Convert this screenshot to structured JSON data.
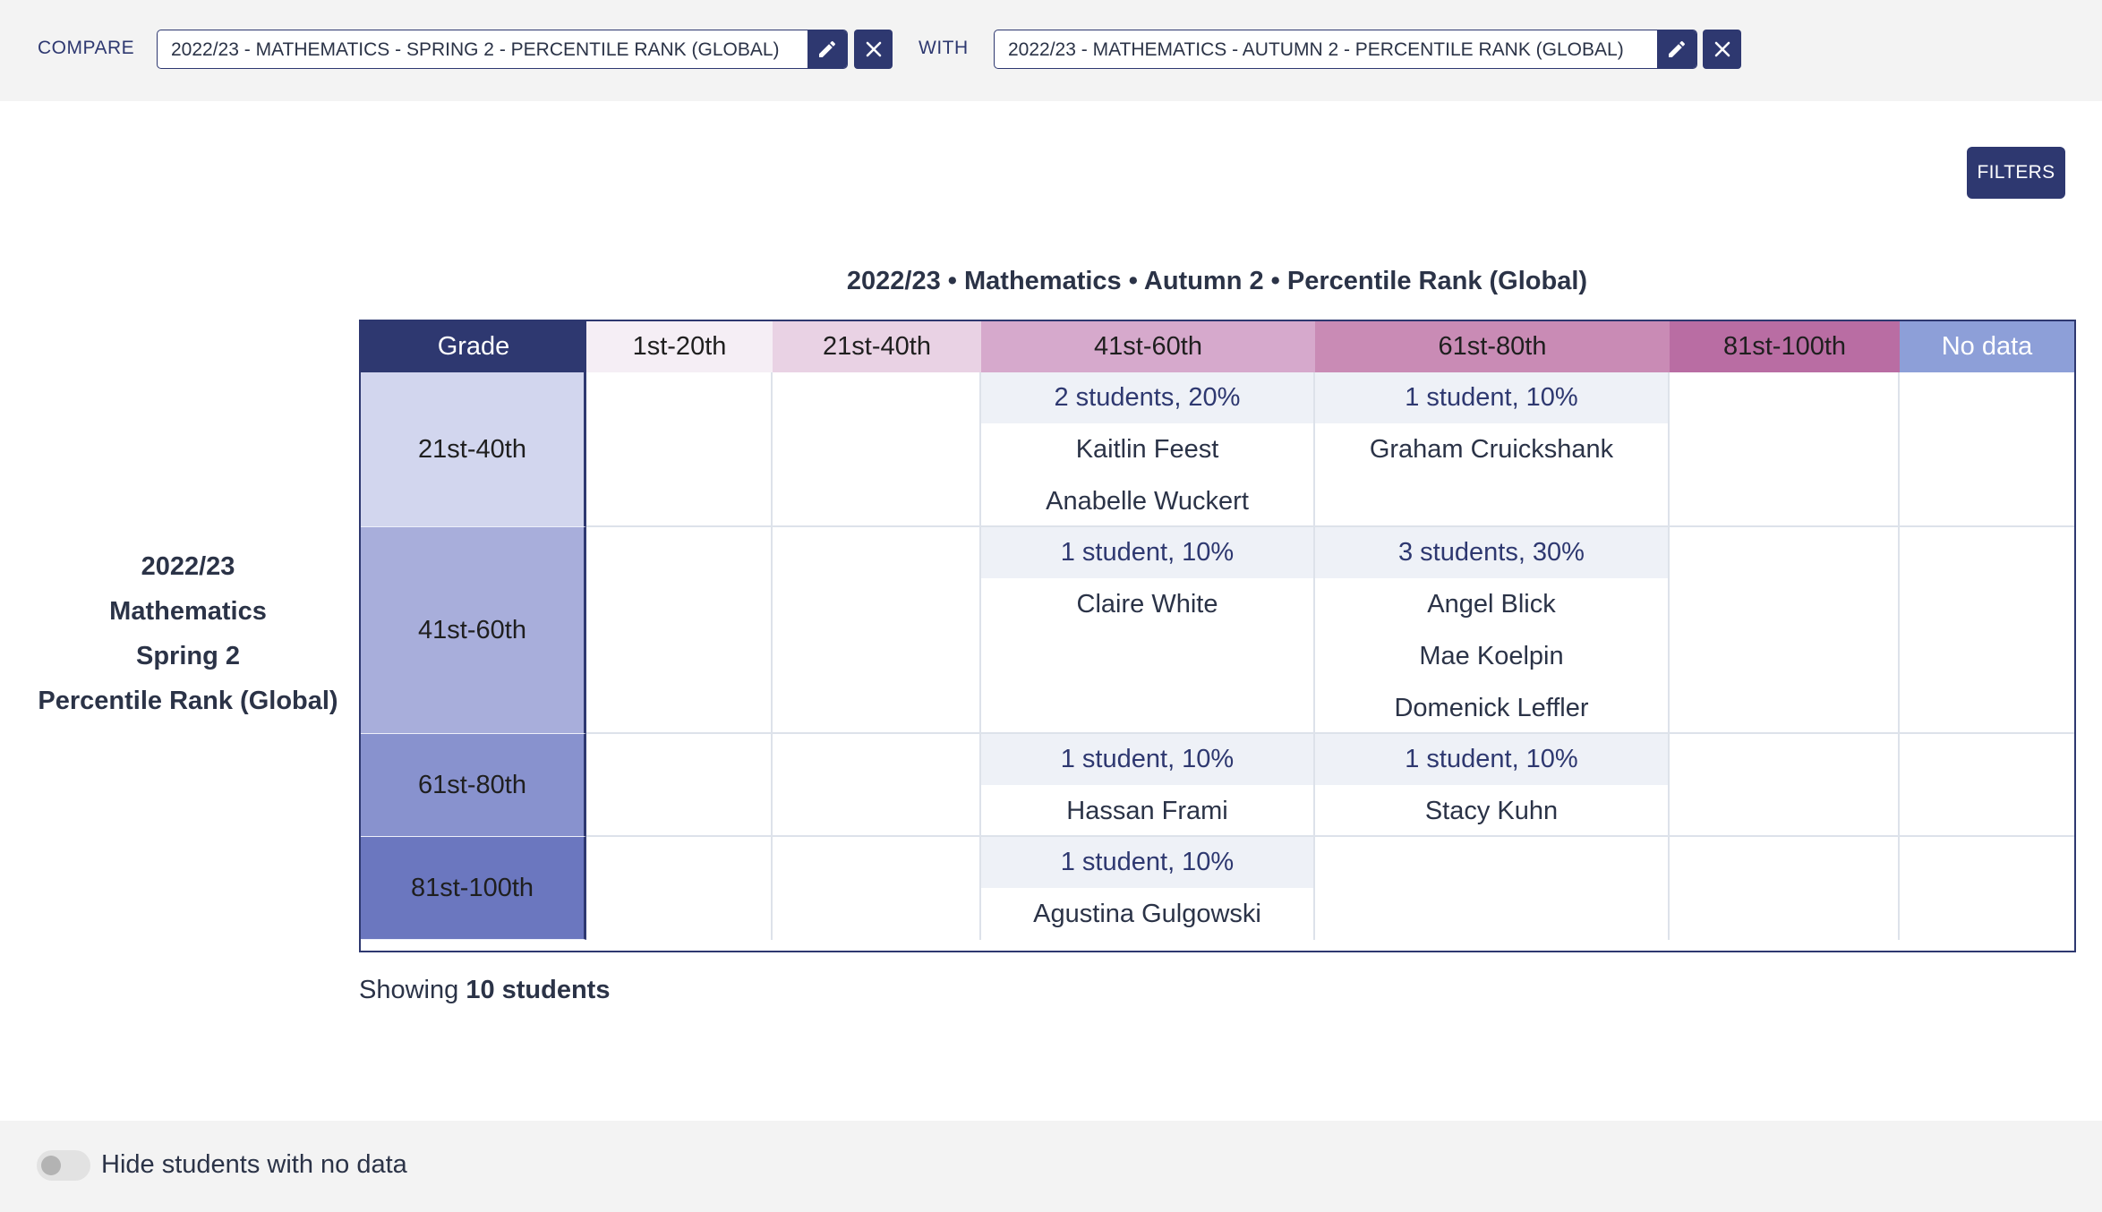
{
  "compare": {
    "label": "COMPARE",
    "value": "2022/23 - MATHEMATICS - SPRING 2 - PERCENTILE RANK (GLOBAL)"
  },
  "with": {
    "label": "WITH",
    "value": "2022/23 - MATHEMATICS - AUTUMN 2 - PERCENTILE RANK (GLOBAL)"
  },
  "filters_label": "FILTERS",
  "table": {
    "title": "2022/23 • Mathematics • Autumn 2 • Percentile Rank (Global)",
    "row_axis_title": [
      "2022/23",
      "Mathematics",
      "Spring 2",
      "Percentile Rank (Global)"
    ],
    "grade_header": "Grade",
    "columns": [
      {
        "label": "1st-20th",
        "color": "#f5eef5"
      },
      {
        "label": "21st-40th",
        "color": "#e9d2e4"
      },
      {
        "label": "41st-60th",
        "color": "#d6a9cc"
      },
      {
        "label": "61st-80th",
        "color": "#c98bb5"
      },
      {
        "label": "81st-100th",
        "color": "#b96da3"
      },
      {
        "label": "No data",
        "color": "#8d9fd8"
      }
    ],
    "rows": [
      {
        "grade": "21st-40th",
        "color": "#d2d6ee",
        "cells": [
          null,
          null,
          {
            "count": "2 students, 20%",
            "students": [
              "Kaitlin Feest",
              "Anabelle Wuckert"
            ]
          },
          {
            "count": "1 student, 10%",
            "students": [
              "Graham Cruickshank"
            ]
          },
          null,
          null
        ]
      },
      {
        "grade": "41st-60th",
        "color": "#a8aedb",
        "cells": [
          null,
          null,
          {
            "count": "1 student, 10%",
            "students": [
              "Claire White"
            ]
          },
          {
            "count": "3 students, 30%",
            "students": [
              "Angel Blick",
              "Mae Koelpin",
              "Domenick Leffler"
            ]
          },
          null,
          null
        ]
      },
      {
        "grade": "61st-80th",
        "color": "#8892ce",
        "cells": [
          null,
          null,
          {
            "count": "1 student, 10%",
            "students": [
              "Hassan Frami"
            ]
          },
          {
            "count": "1 student, 10%",
            "students": [
              "Stacy Kuhn"
            ]
          },
          null,
          null
        ]
      },
      {
        "grade": "81st-100th",
        "color": "#6b77bf",
        "cells": [
          null,
          null,
          {
            "count": "1 student, 10%",
            "students": [
              "Agustina Gulgowski"
            ]
          },
          null,
          null,
          null
        ]
      }
    ]
  },
  "showing": {
    "prefix": "Showing",
    "count": "10 students"
  },
  "hide_toggle_label": "Hide students with no data"
}
